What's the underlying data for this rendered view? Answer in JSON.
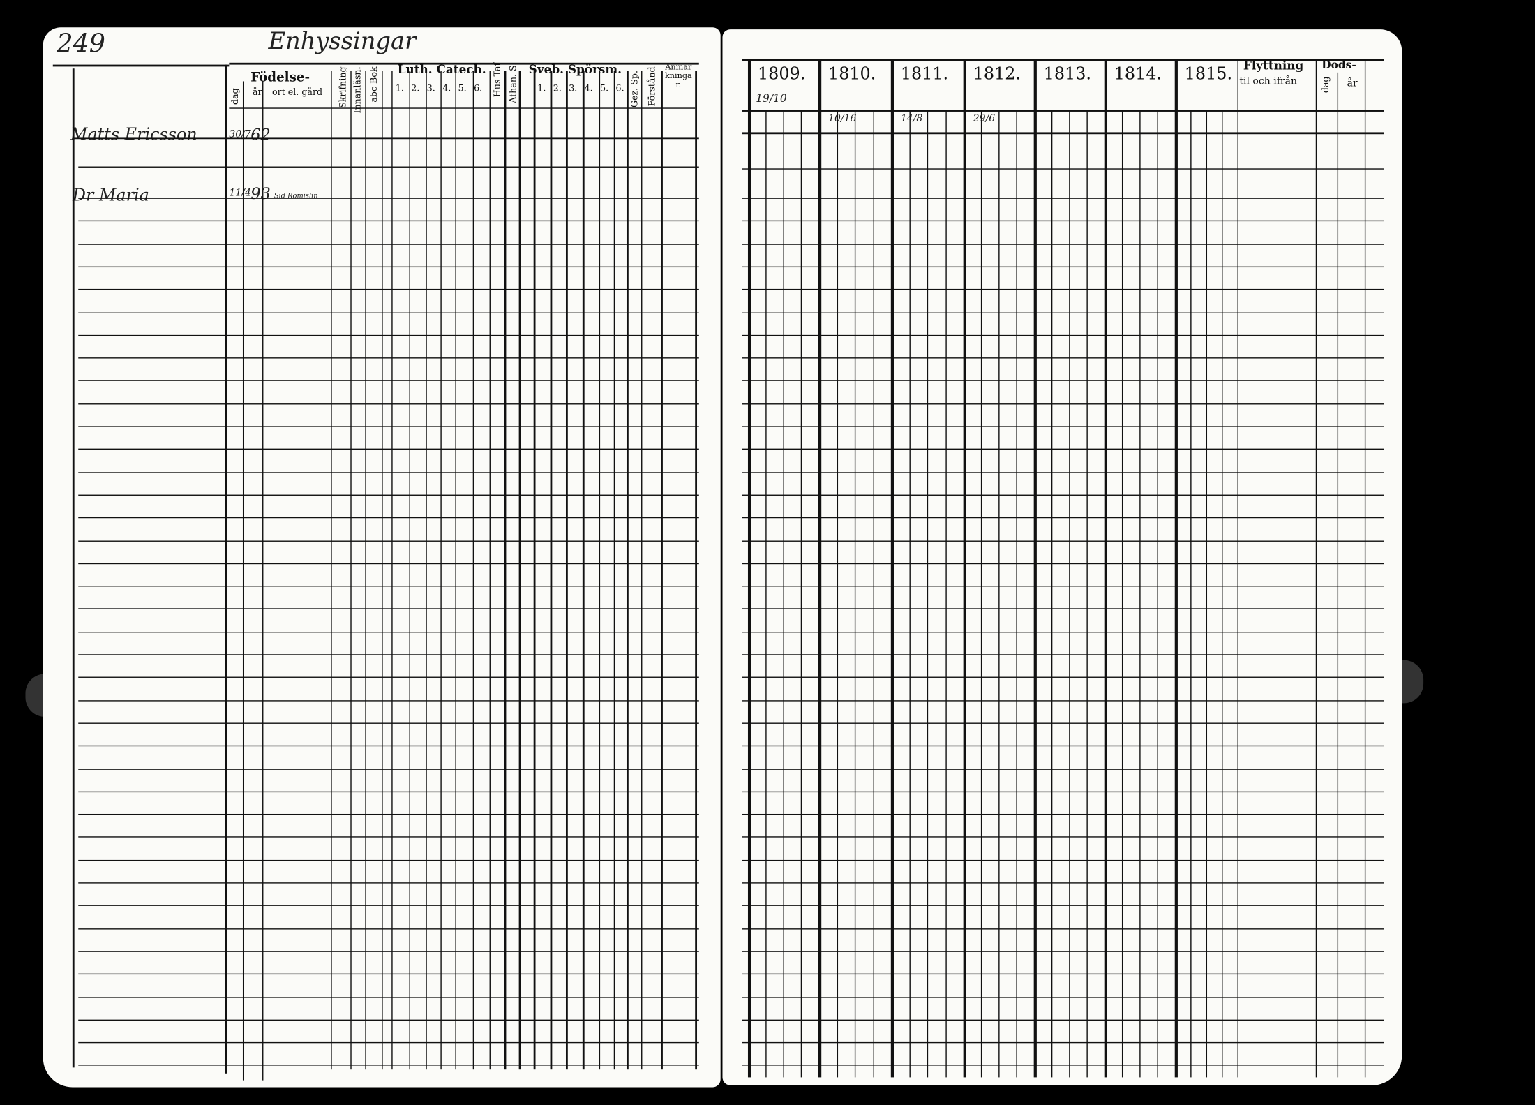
{
  "left_page": {
    "page_number": "249",
    "place_heading": "Enhyssingar",
    "headers": {
      "birth": "Födelse-",
      "birth_day": "dag",
      "birth_year": "år",
      "birth_place": "ort el. gård",
      "skrifning": "Skrifning",
      "innanlasn": "Innanläsn.",
      "abc_bok": "abc Bok",
      "luth_catech": "Luth. Catech.",
      "luth_cols": [
        "1.",
        "2.",
        "3.",
        "4.",
        "5.",
        "6."
      ],
      "hus_taf": "Hus Taf",
      "athan": "Athan. S.",
      "sveb_sporsm": "Sveb. Spörsm.",
      "sveb_cols": [
        "1.",
        "2.",
        "3.",
        "4.",
        "5.",
        "6."
      ],
      "gez_sp": "Gez. Sp.",
      "forstand": "Förstånd",
      "anmarkningar": "Anmärkningar."
    },
    "entries": [
      {
        "name": "Matts Ericsson",
        "day": "30/7",
        "year": "62",
        "place": ""
      },
      {
        "name": "Dr Maria",
        "day": "11/4",
        "year": "93",
        "place": "Sid Romislin"
      }
    ]
  },
  "right_page": {
    "years": [
      "1809.",
      "1810.",
      "1811.",
      "1812.",
      "1813.",
      "1814.",
      "1815."
    ],
    "year_note": "19/10",
    "flyttning": "Flyttning",
    "flyttning_sub": "til och ifrån",
    "doeds": "Döds-",
    "doeds_day": "dag",
    "doeds_year": "år",
    "entries_row1": [
      "",
      "10/16",
      "14/8",
      "29/6",
      "",
      "",
      ""
    ]
  }
}
